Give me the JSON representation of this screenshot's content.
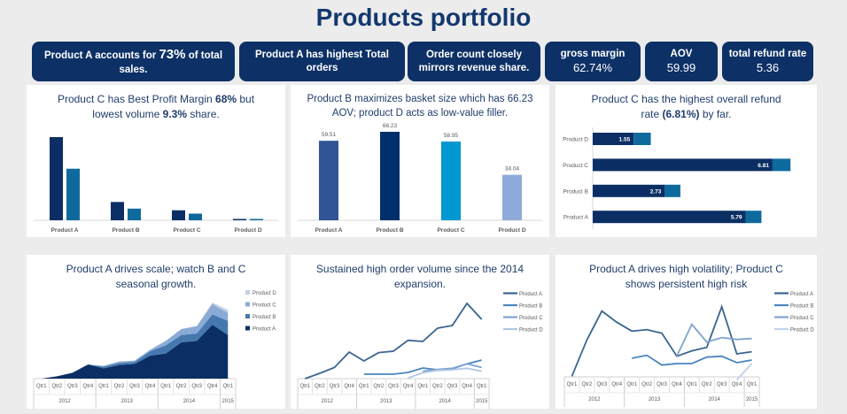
{
  "header": {
    "title": "Products portfolio"
  },
  "kpis": [
    {
      "text": "Product A accounts for 73% of total sales.",
      "highlight": "73%"
    },
    {
      "text": "Product  A has highest Total orders"
    },
    {
      "text": "Order count closely mirrors revenue share."
    },
    {
      "label": "gross margin",
      "value": "62.74%"
    },
    {
      "label": "AOV",
      "value": "59.99"
    },
    {
      "label": "total refund rate",
      "value": "5.36"
    }
  ],
  "colors": {
    "navy": "#0b2f64",
    "teal": "#0e6a9d",
    "kpi_bg": "#0d3166",
    "title": "#13386e"
  },
  "chart_data": [
    {
      "type": "bar",
      "title": "Product C has Best Profit Margin 68% but lowest volume 9.3% share.",
      "title_bold": [
        "68%",
        "9.3%"
      ],
      "categories": [
        "Product A",
        "Product B",
        "Product C",
        "Product D"
      ],
      "series": [
        {
          "values": [
            100,
            22,
            12,
            1
          ],
          "color": "#0b2f64"
        },
        {
          "values": [
            62,
            14,
            8,
            1
          ],
          "color": "#0e6a9d"
        }
      ],
      "grid": false
    },
    {
      "type": "bar",
      "title": "Product B maximizes basket size which has 66.23 AOV; product D acts as low-value filler.",
      "categories": [
        "Product A",
        "Product B",
        "Product C",
        "Product D"
      ],
      "values": [
        59.51,
        66.23,
        58.95,
        34.04
      ],
      "value_labels": [
        "59.51",
        "66.23",
        "58.95",
        "34.04"
      ],
      "colors": [
        "#2f5597",
        "#002f6c",
        "#0098d0",
        "#8eaadb"
      ],
      "grid": false
    },
    {
      "type": "bar",
      "orientation": "horizontal",
      "stacked": true,
      "title": "Product C has the highest overall refund rate (6.81%) by far.",
      "title_bold": [
        "(6.81%)"
      ],
      "categories": [
        "Product D",
        "Product C",
        "Product B",
        "Product A"
      ],
      "series": [
        {
          "values": [
            1.55,
            6.81,
            2.73,
            5.79
          ],
          "labels": [
            "1.55",
            "6.81",
            "2.73",
            "5.79"
          ],
          "color": "#0b2f64"
        },
        {
          "values": [
            0.65,
            0.68,
            0.59,
            0.6
          ],
          "color": "#0e6a9d"
        }
      ],
      "grid": false
    },
    {
      "type": "area",
      "stacked": true,
      "title": "Product A drives scale; watch B and C seasonal growth.",
      "quarters": [
        "Qtr1",
        "Qtr2",
        "Qtr3",
        "Qtr4",
        "Qtr1",
        "Qtr2",
        "Qtr3",
        "Qtr4",
        "Qtr1",
        "Qtr2",
        "Qtr3",
        "Qtr4",
        "Qtr1"
      ],
      "years": [
        {
          "label": "2012",
          "span": 4
        },
        {
          "label": "2013",
          "span": 4
        },
        {
          "label": "2014",
          "span": 4
        },
        {
          "label": "2015",
          "span": 1
        }
      ],
      "series": [
        {
          "name": "Product A",
          "color": "#0b2f64",
          "values": [
            0,
            8,
            20,
            48,
            35,
            46,
            50,
            78,
            85,
            123,
            128,
            183,
            148
          ]
        },
        {
          "name": "Product B",
          "color": "#4678b0",
          "values": [
            0,
            0,
            0,
            0,
            6,
            7,
            7,
            15,
            28,
            25,
            25,
            35,
            48
          ]
        },
        {
          "name": "Product C",
          "color": "#8aabd6",
          "values": [
            0,
            0,
            0,
            0,
            2,
            5,
            4,
            5,
            15,
            20,
            25,
            35,
            27
          ]
        },
        {
          "name": "Product D",
          "color": "#c5cfe6",
          "values": [
            0,
            0,
            0,
            0,
            0,
            0,
            0,
            0,
            0,
            0,
            0,
            5,
            10
          ]
        }
      ],
      "legend": "right",
      "grid": false
    },
    {
      "type": "line",
      "title": "Sustained high order volume since the 2014 expansion.",
      "quarters": [
        "Qtr1",
        "Qtr2",
        "Qtr3",
        "Qtr4",
        "Qtr1",
        "Qtr2",
        "Qtr3",
        "Qtr4",
        "Qtr1",
        "Qtr2",
        "Qtr3",
        "Qtr4",
        "Qtr1"
      ],
      "years": [
        {
          "label": "2012",
          "span": 4
        },
        {
          "label": "2013",
          "span": 4
        },
        {
          "label": "2014",
          "span": 4
        },
        {
          "label": "2015",
          "span": 1
        }
      ],
      "series": [
        {
          "name": "Product A",
          "color": "#3b6590",
          "values": [
            0,
            18,
            38,
            90,
            60,
            88,
            93,
            130,
            126,
            171,
            180,
            255,
            201
          ]
        },
        {
          "name": "Product B",
          "color": "#4a86c0",
          "values": [
            null,
            null,
            null,
            null,
            15,
            15,
            15,
            21,
            36,
            30,
            33,
            50,
            63
          ]
        },
        {
          "name": "Product C",
          "color": "#7fa3cf",
          "values": [
            null,
            null,
            null,
            null,
            null,
            null,
            null,
            null,
            25,
            31,
            35,
            50,
            38
          ]
        },
        {
          "name": "Product D",
          "color": "#afc6e4",
          "values": [
            null,
            null,
            null,
            null,
            null,
            null,
            null,
            2,
            20,
            28,
            30,
            35,
            25
          ]
        }
      ],
      "legend": "right",
      "grid": false
    },
    {
      "type": "line",
      "title": "Product A drives high volatility; Product C shows persistent high risk",
      "quarters": [
        "Qtr1",
        "Qtr2",
        "Qtr3",
        "Qtr4",
        "Qtr1",
        "Qtr2",
        "Qtr3",
        "Qtr4",
        "Qtr1",
        "Qtr2",
        "Qtr3",
        "Qtr4",
        "Qtr1"
      ],
      "years": [
        {
          "label": "2012",
          "span": 4
        },
        {
          "label": "2013",
          "span": 4
        },
        {
          "label": "2014",
          "span": 4
        },
        {
          "label": "2015",
          "span": 1
        }
      ],
      "series": [
        {
          "name": "Product A",
          "color": "#3b6590",
          "values": [
            2,
            125,
            223,
            185,
            155,
            160,
            148,
            70,
            88,
            100,
            238,
            78,
            85
          ]
        },
        {
          "name": "Product B",
          "color": "#4a86c0",
          "values": [
            null,
            null,
            null,
            null,
            63,
            73,
            40,
            45,
            45,
            67,
            70,
            48,
            57
          ]
        },
        {
          "name": "Product C",
          "color": "#7fa3cf",
          "values": [
            null,
            null,
            null,
            null,
            null,
            null,
            null,
            70,
            178,
            118,
            133,
            127,
            130
          ]
        },
        {
          "name": "Product D",
          "color": "#c2d2e8",
          "values": [
            null,
            null,
            null,
            null,
            null,
            null,
            null,
            null,
            null,
            null,
            null,
            -10,
            45
          ]
        }
      ],
      "legend": "right",
      "grid": false
    }
  ]
}
